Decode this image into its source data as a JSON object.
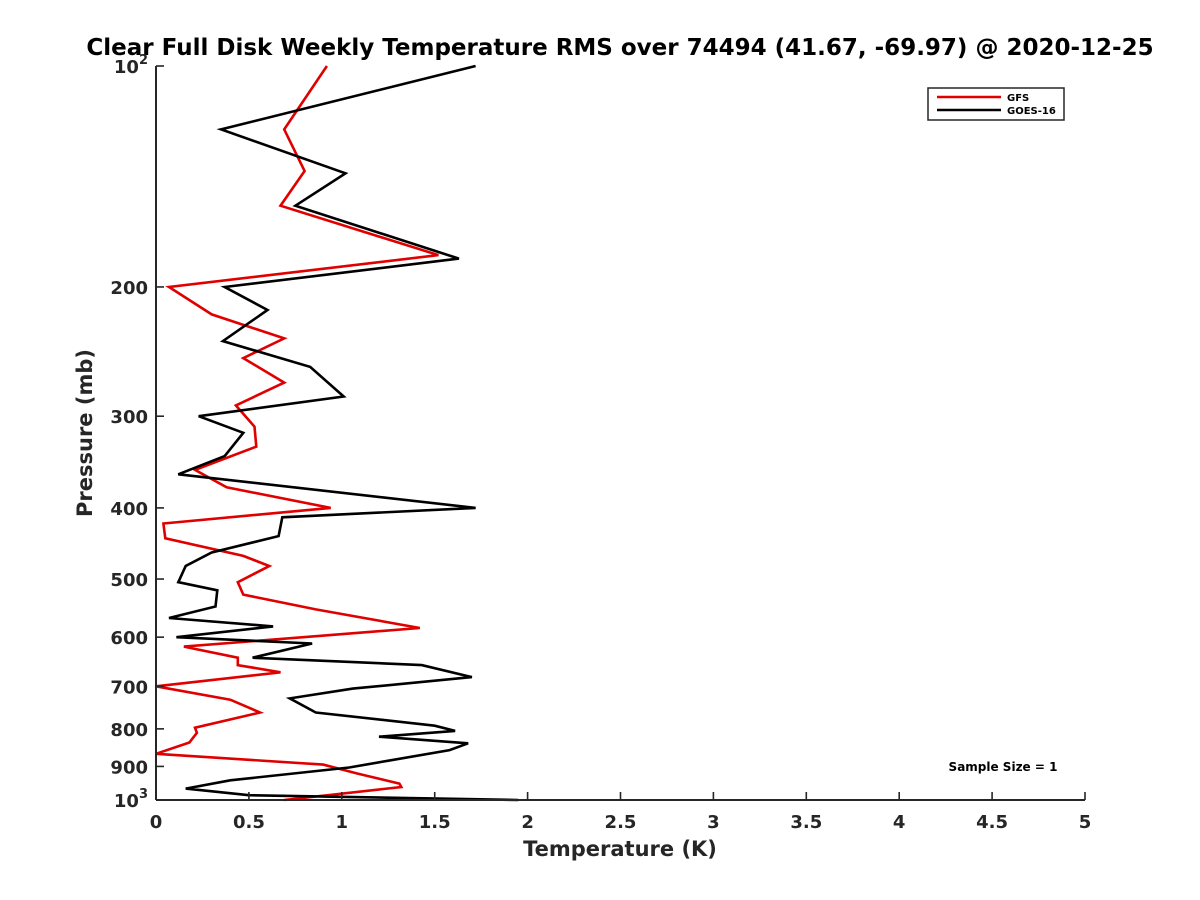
{
  "chart_data": {
    "type": "line",
    "title": "Clear Full Disk Weekly Temperature RMS over 74494 (41.67, -69.97) @ 2020-12-25",
    "xlabel": "Temperature (K)",
    "ylabel": "Pressure (mb)",
    "xlim": [
      0,
      5
    ],
    "ylim": [
      100,
      1000
    ],
    "y_scale": "log",
    "y_reversed": true,
    "x_ticks": [
      "0",
      "0.5",
      "1",
      "1.5",
      "2",
      "2.5",
      "3",
      "3.5",
      "4",
      "4.5",
      "5"
    ],
    "y_ticks": [
      {
        "value": 100,
        "base": "10",
        "exp": "2"
      },
      {
        "value": 200,
        "label": "200"
      },
      {
        "value": 300,
        "label": "300"
      },
      {
        "value": 400,
        "label": "400"
      },
      {
        "value": 500,
        "label": "500"
      },
      {
        "value": 600,
        "label": "600"
      },
      {
        "value": 700,
        "label": "700"
      },
      {
        "value": 800,
        "label": "800"
      },
      {
        "value": 900,
        "label": "900"
      },
      {
        "value": 1000,
        "base": "10",
        "exp": "3"
      }
    ],
    "grid": false,
    "legend_position": "top-right",
    "annotation": "Sample Size = 1",
    "series": [
      {
        "name": "GFS",
        "color": "#e00000",
        "x": [
          0.92,
          0.69,
          0.8,
          0.67,
          1.52,
          0.07,
          0.3,
          0.69,
          0.47,
          0.69,
          0.43,
          0.53,
          0.54,
          0.21,
          0.38,
          0.94,
          0.04,
          0.05,
          0.47,
          0.61,
          0.44,
          0.47,
          0.86,
          1.42,
          0.15,
          0.44,
          0.44,
          0.67,
          0.0,
          0.4,
          0.56,
          0.21,
          0.22,
          0.18,
          0.0,
          0.9,
          1.08,
          1.31,
          1.32,
          0.69
        ],
        "y": [
          100,
          122,
          139,
          155,
          181,
          200,
          218,
          235,
          250,
          270,
          290,
          310,
          330,
          355,
          375,
          400,
          420,
          440,
          465,
          480,
          505,
          525,
          550,
          583,
          618,
          640,
          655,
          670,
          700,
          730,
          760,
          797,
          810,
          835,
          865,
          895,
          920,
          950,
          960,
          1000
        ]
      },
      {
        "name": "GOES-16",
        "color": "#000000",
        "x": [
          1.72,
          0.35,
          1.02,
          0.75,
          1.63,
          0.37,
          0.6,
          0.36,
          0.83,
          1.01,
          0.23,
          0.47,
          0.37,
          0.12,
          1.72,
          0.68,
          0.66,
          0.3,
          0.16,
          0.12,
          0.33,
          0.32,
          0.07,
          0.63,
          0.11,
          0.84,
          0.52,
          1.43,
          1.7,
          1.06,
          0.72,
          0.86,
          1.5,
          1.61,
          1.2,
          1.68,
          1.58,
          1.04,
          0.4,
          0.16,
          0.5,
          1.95
        ],
        "y": [
          100,
          122,
          140,
          155,
          183,
          200,
          215,
          237,
          257,
          282,
          300,
          316,
          340,
          360,
          400,
          412,
          437,
          460,
          480,
          505,
          518,
          545,
          565,
          580,
          600,
          612,
          640,
          655,
          680,
          705,
          727,
          760,
          792,
          805,
          820,
          837,
          855,
          903,
          940,
          965,
          985,
          1000
        ]
      }
    ]
  }
}
